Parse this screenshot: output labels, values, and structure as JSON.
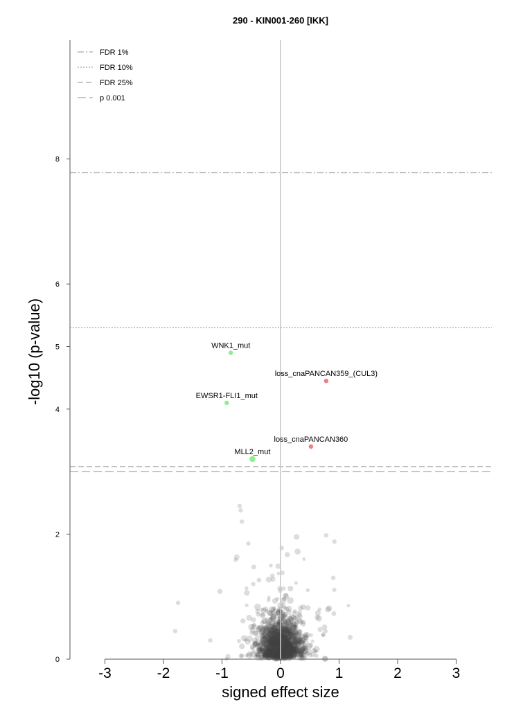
{
  "chart_data": {
    "type": "scatter",
    "title": "290 - KIN001-260 [IKK]",
    "xlabel": "signed effect size",
    "ylabel": "-log10 (p-value)",
    "xlim": [
      -3.6,
      3.6
    ],
    "ylim": [
      0,
      10
    ],
    "xticks": [
      "-3",
      "-2",
      "-1",
      "0",
      "1",
      "2",
      "3"
    ],
    "yticks": [
      "0",
      "2",
      "4",
      "5",
      "6",
      "8"
    ],
    "legend": {
      "position": "top-left",
      "entries": [
        {
          "label": "FDR 1%",
          "style": "dashdot"
        },
        {
          "label": "FDR 10%",
          "style": "dotted"
        },
        {
          "label": "FDR 25%",
          "style": "dashed-short"
        },
        {
          "label": "p 0.001",
          "style": "dashed-long"
        }
      ]
    },
    "thresholds": [
      {
        "label": "FDR 1%",
        "y": 7.78
      },
      {
        "label": "FDR 10%",
        "y": 5.3
      },
      {
        "label": "FDR 25%",
        "y": 3.08
      },
      {
        "label": "p 0.001",
        "y": 3.0
      }
    ],
    "highlighted_points": [
      {
        "label": "WNK1_mut",
        "x": -0.85,
        "y": 4.9,
        "color": "#90ee90"
      },
      {
        "label": "loss_cnaPANCAN359_(CUL3)",
        "x": 0.78,
        "y": 4.45,
        "color": "#f08080"
      },
      {
        "label": "EWSR1-FLI1_mut",
        "x": -0.92,
        "y": 4.1,
        "color": "#90ee90"
      },
      {
        "label": "loss_cnaPANCAN360",
        "x": 0.52,
        "y": 3.4,
        "color": "#f08080"
      },
      {
        "label": "MLL2_mut",
        "x": -0.48,
        "y": 3.2,
        "color": "#90ee90"
      }
    ],
    "grid": false,
    "colors": {
      "sensitive": "#90ee90",
      "resistant": "#f08080",
      "background": "#444444",
      "threshold": "#a6a6a6",
      "zero_line": "#c8c8c8"
    }
  }
}
